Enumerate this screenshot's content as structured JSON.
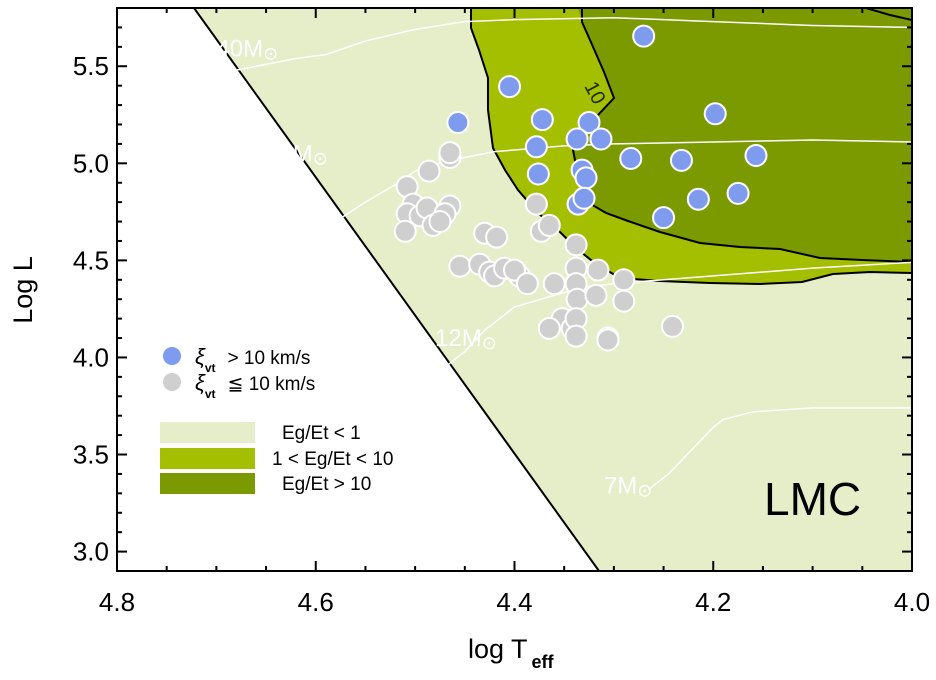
{
  "chart_data": {
    "type": "scatter",
    "title": "",
    "xlabel": "log T",
    "xlabel_sub": "eff",
    "ylabel": "Log L",
    "xlim": [
      4.8,
      4.0
    ],
    "ylim": [
      2.9,
      5.8
    ],
    "x_inverted": true,
    "x_ticks": [
      "4.8",
      "4.6",
      "4.4",
      "4.2",
      "4.0"
    ],
    "y_ticks": [
      "3.0",
      "3.5",
      "4.0",
      "4.5",
      "5.0",
      "5.5"
    ],
    "panel_label": "LMC",
    "contour_label": "10",
    "legend": {
      "symbols": [
        {
          "name": "xi > 10 km/s",
          "glyph": "ξ",
          "sub": "vt",
          "text": "> 10 km/s",
          "color": "#7f9bee"
        },
        {
          "name": "xi <= 10 km/s",
          "glyph": "ξ",
          "sub": "vt",
          "text": "≦ 10 km/s",
          "color": "#cfcfcf"
        }
      ],
      "regions": [
        {
          "label": "Eg/Et < 1",
          "color": "#e6edc9"
        },
        {
          "label": "1 < Eg/Et < 10",
          "color": "#a4bf00"
        },
        {
          "label": "Eg/Et > 10",
          "color": "#7a9a00"
        }
      ]
    },
    "tracks": [
      {
        "label": "40M",
        "unit": "⊙",
        "points": [
          [
            4.735,
            5.42
          ],
          [
            4.7,
            5.46
          ],
          [
            4.66,
            5.5
          ],
          [
            4.62,
            5.54
          ],
          [
            4.59,
            5.56
          ],
          [
            4.55,
            5.63
          ],
          [
            4.5,
            5.69
          ],
          [
            4.45,
            5.73
          ],
          [
            4.4,
            5.74
          ],
          [
            4.3,
            5.75
          ],
          [
            4.2,
            5.73
          ],
          [
            4.1,
            5.71
          ],
          [
            4.0,
            5.7
          ]
        ]
      },
      {
        "label": "20M",
        "unit": "⊙",
        "points": [
          [
            4.61,
            4.62
          ],
          [
            4.58,
            4.7
          ],
          [
            4.55,
            4.8
          ],
          [
            4.52,
            4.89
          ],
          [
            4.5,
            4.96
          ],
          [
            4.47,
            5.01
          ],
          [
            4.42,
            5.06
          ],
          [
            4.35,
            5.09
          ],
          [
            4.3,
            5.1
          ],
          [
            4.2,
            5.11
          ],
          [
            4.1,
            5.12
          ],
          [
            4.0,
            5.11
          ]
        ]
      },
      {
        "label": "12M",
        "unit": "⊙",
        "points": [
          [
            4.47,
            3.95
          ],
          [
            4.45,
            4.03
          ],
          [
            4.43,
            4.14
          ],
          [
            4.4,
            4.26
          ],
          [
            4.36,
            4.32
          ],
          [
            4.33,
            4.36
          ],
          [
            4.3,
            4.38
          ],
          [
            4.25,
            4.4
          ],
          [
            4.2,
            4.42
          ],
          [
            4.1,
            4.46
          ],
          [
            4.0,
            4.49
          ]
        ]
      },
      {
        "label": "7M",
        "unit": "⊙",
        "points": [
          [
            4.265,
            3.32
          ],
          [
            4.245,
            3.4
          ],
          [
            4.23,
            3.48
          ],
          [
            4.215,
            3.56
          ],
          [
            4.2,
            3.64
          ],
          [
            4.19,
            3.68
          ],
          [
            4.16,
            3.72
          ],
          [
            4.1,
            3.74
          ],
          [
            4.0,
            3.74
          ]
        ]
      }
    ],
    "series": [
      {
        "name": "xi > 10 km/s",
        "color": "#7f9bee",
        "points": [
          [
            4.27,
            5.655
          ],
          [
            4.405,
            5.395
          ],
          [
            4.457,
            5.21
          ],
          [
            4.372,
            5.225
          ],
          [
            4.325,
            5.21
          ],
          [
            4.198,
            5.255
          ],
          [
            4.378,
            5.085
          ],
          [
            4.337,
            5.125
          ],
          [
            4.313,
            5.125
          ],
          [
            4.283,
            5.025
          ],
          [
            4.232,
            5.015
          ],
          [
            4.157,
            5.04
          ],
          [
            4.376,
            4.945
          ],
          [
            4.332,
            4.965
          ],
          [
            4.328,
            4.925
          ],
          [
            4.175,
            4.845
          ],
          [
            4.215,
            4.815
          ],
          [
            4.25,
            4.72
          ],
          [
            4.336,
            4.79
          ],
          [
            4.33,
            4.82
          ]
        ]
      },
      {
        "name": "xi <= 10 km/s",
        "color": "#cfcfcf",
        "points": [
          [
            4.465,
            5.03
          ],
          [
            4.465,
            5.055
          ],
          [
            4.508,
            4.88
          ],
          [
            4.486,
            4.96
          ],
          [
            4.502,
            4.79
          ],
          [
            4.508,
            4.74
          ],
          [
            4.495,
            4.73
          ],
          [
            4.488,
            4.77
          ],
          [
            4.465,
            4.78
          ],
          [
            4.47,
            4.74
          ],
          [
            4.51,
            4.65
          ],
          [
            4.482,
            4.68
          ],
          [
            4.475,
            4.7
          ],
          [
            4.378,
            4.79
          ],
          [
            4.373,
            4.65
          ],
          [
            4.365,
            4.68
          ],
          [
            4.43,
            4.64
          ],
          [
            4.418,
            4.62
          ],
          [
            4.338,
            4.58
          ],
          [
            4.455,
            4.47
          ],
          [
            4.435,
            4.48
          ],
          [
            4.425,
            4.44
          ],
          [
            4.42,
            4.42
          ],
          [
            4.41,
            4.46
          ],
          [
            4.395,
            4.42
          ],
          [
            4.4,
            4.45
          ],
          [
            4.387,
            4.38
          ],
          [
            4.36,
            4.38
          ],
          [
            4.338,
            4.46
          ],
          [
            4.338,
            4.38
          ],
          [
            4.316,
            4.45
          ],
          [
            4.29,
            4.4
          ],
          [
            4.337,
            4.3
          ],
          [
            4.318,
            4.32
          ],
          [
            4.29,
            4.29
          ],
          [
            4.352,
            4.2
          ],
          [
            4.342,
            4.15
          ],
          [
            4.365,
            4.15
          ],
          [
            4.338,
            4.2
          ],
          [
            4.338,
            4.11
          ],
          [
            4.306,
            4.1
          ],
          [
            4.306,
            4.09
          ],
          [
            4.241,
            4.16
          ]
        ]
      }
    ]
  }
}
